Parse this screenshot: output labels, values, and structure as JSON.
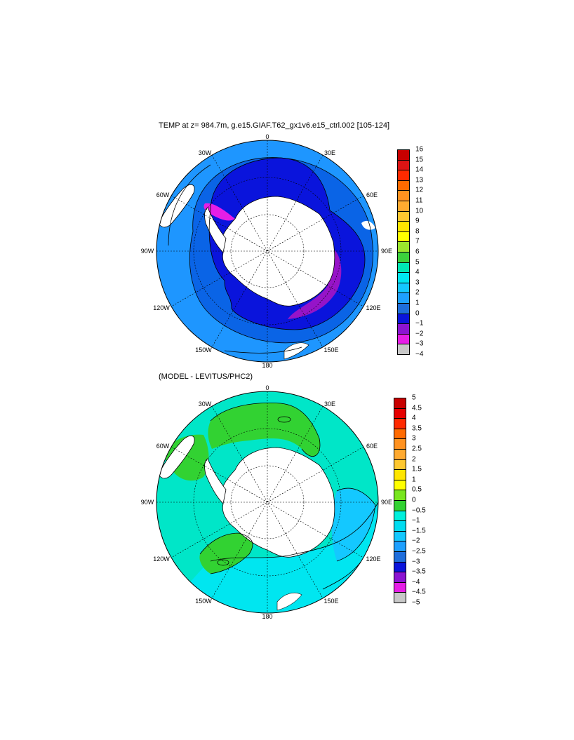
{
  "panel_top": {
    "title": "TEMP at z= 984.7m, g.e15.GIAF.T62_gx1v6.e15_ctrl.002 [105-124]",
    "lon_labels": [
      "0",
      "30E",
      "60E",
      "90E",
      "120E",
      "150E",
      "180",
      "150W",
      "120W",
      "90W",
      "60W",
      "30W"
    ],
    "colorbar": {
      "labels": [
        "16",
        "15",
        "14",
        "13",
        "12",
        "11",
        "10",
        "9",
        "8",
        "7",
        "6",
        "5",
        "4",
        "3",
        "2",
        "1",
        "0",
        "−1",
        "−2",
        "−3",
        "−4"
      ],
      "colors": [
        "#c80000",
        "#dc1414",
        "#ff2a00",
        "#ff6a00",
        "#ff9220",
        "#ffaa30",
        "#ffc830",
        "#ffe600",
        "#ffff00",
        "#9be62d",
        "#3cd23c",
        "#00e6b4",
        "#00e6f0",
        "#14c8ff",
        "#1ea0ff",
        "#1e6edc",
        "#0a14dc",
        "#8c14d2",
        "#e61ee6",
        "#c8c8c8",
        "#6e6e6e"
      ]
    },
    "map_colors": {
      "ocean_outer": "#1e96ff",
      "ocean_mid": "#0a64e6",
      "ocean_inner": "#0a14dc",
      "cold": "#9614c8",
      "coldest": "#e61ee6",
      "land": "#ffffff"
    }
  },
  "panel_bottom": {
    "title": "(MODEL - LEVITUS/PHC2)",
    "lon_labels": [
      "0",
      "30E",
      "60E",
      "90E",
      "120E",
      "150E",
      "180",
      "150W",
      "120W",
      "90W",
      "60W",
      "30W"
    ],
    "colorbar": {
      "labels": [
        "5",
        "4.5",
        "4",
        "3.5",
        "3",
        "2.5",
        "2",
        "1.5",
        "1",
        "0.5",
        "0",
        "−0.5",
        "−1",
        "−1.5",
        "−2",
        "−2.5",
        "−3",
        "−3.5",
        "−4",
        "−4.5",
        "−5"
      ],
      "colors": [
        "#c80000",
        "#e60000",
        "#ff2a00",
        "#ff6a00",
        "#ff9220",
        "#ffaa30",
        "#ffc830",
        "#ffe600",
        "#ffff00",
        "#78e61e",
        "#32d232",
        "#00f0dc",
        "#00dcf0",
        "#14c8ff",
        "#1ea0ff",
        "#1e6edc",
        "#0a14dc",
        "#8c14d2",
        "#e61ee6",
        "#c8c8c8",
        "#6e6e6e"
      ]
    },
    "map_colors": {
      "ocean": "#00e6c8",
      "ocean_alt": "#00e6f0",
      "negative": "#14c8ff",
      "positive": "#32d232",
      "land": "#ffffff"
    }
  }
}
